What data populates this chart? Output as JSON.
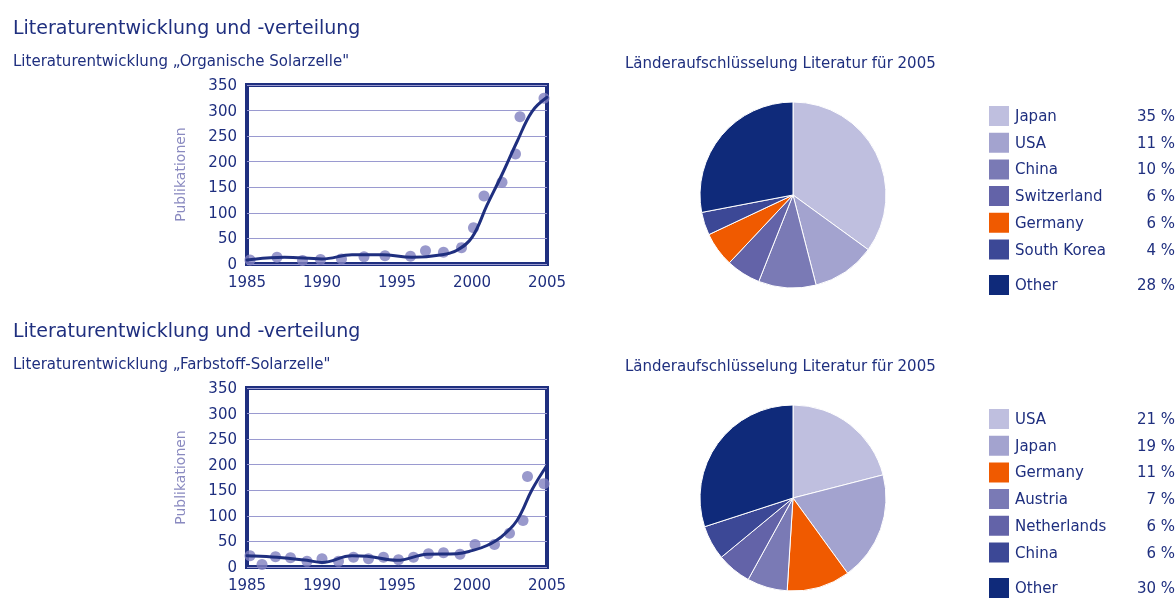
{
  "chart_data": [
    {
      "type": "scatter",
      "title": "Literaturentwicklung und -verteilung",
      "subtitle": "Literaturentwicklung „Organische Solarzelle\"",
      "ylabel": "Publikationen",
      "xlim": [
        1985,
        2005
      ],
      "xticks": [
        1985,
        1990,
        1995,
        2000,
        2005
      ],
      "ylim": [
        0,
        350
      ],
      "yticks": [
        0,
        50,
        100,
        150,
        200,
        250,
        300,
        350
      ],
      "grid": "y",
      "legend": false,
      "series": [
        {
          "type": "scatter",
          "marker": "circle",
          "color": "#8080bf",
          "x": [
            1985.2,
            1987.0,
            1988.7,
            1989.9,
            1991.3,
            1992.8,
            1994.2,
            1995.9,
            1996.9,
            1998.1,
            1999.3,
            2000.1,
            2000.8,
            2002.0,
            2002.9,
            2003.2,
            2004.8
          ],
          "values": [
            8,
            13,
            7,
            9,
            10,
            14,
            16,
            15,
            26,
            23,
            32,
            71,
            133,
            160,
            215,
            288,
            324
          ]
        },
        {
          "type": "line",
          "marker": "none",
          "color": "#1f2f7f",
          "line_style": "solid",
          "x": [
            1985,
            1987.5,
            1990,
            1992,
            1994,
            1996,
            1998,
            1999,
            2000,
            2001,
            2002,
            2003,
            2004,
            2005
          ],
          "values": [
            8,
            13,
            10,
            18,
            18,
            13,
            18,
            27,
            52,
            115,
            175,
            239,
            298,
            326
          ]
        }
      ]
    },
    {
      "type": "pie",
      "title": "Länderaufschlüsselung Literatur für 2005",
      "legend": "right",
      "categories": [
        "Japan",
        "USA",
        "China",
        "Switzerland",
        "Germany",
        "South Korea",
        "Other"
      ],
      "values": [
        35,
        11,
        10,
        6,
        6,
        4,
        28
      ],
      "value_labels": [
        "35 %",
        "11 %",
        "10 %",
        "6 %",
        "6 %",
        "4 %",
        "28 %"
      ],
      "colors": [
        "#bfbfdf",
        "#a3a3cf",
        "#7a7ab5",
        "#6363a8",
        "#f05a00",
        "#3c4896",
        "#0f2a7a"
      ]
    },
    {
      "type": "scatter",
      "title": "Literaturentwicklung und -verteilung",
      "subtitle": "Literaturentwicklung „Farbstoff-Solarzelle\"",
      "ylabel": "Publikationen",
      "xlim": [
        1985,
        2005
      ],
      "xticks": [
        1985,
        1990,
        1995,
        2000,
        2005
      ],
      "ylim": [
        0,
        350
      ],
      "yticks": [
        0,
        50,
        100,
        150,
        200,
        250,
        300,
        350
      ],
      "grid": "y",
      "legend": false,
      "series": [
        {
          "type": "scatter",
          "marker": "circle",
          "color": "#8080bf",
          "x": [
            1985.2,
            1986.0,
            1986.9,
            1987.9,
            1989.0,
            1990.0,
            1991.1,
            1992.1,
            1993.1,
            1994.1,
            1995.1,
            1996.1,
            1997.1,
            1998.1,
            1999.2,
            2000.2,
            2001.5,
            2002.5,
            2003.4,
            2003.7,
            2004.8
          ],
          "values": [
            22,
            5,
            20,
            18,
            11,
            16,
            11,
            19,
            16,
            19,
            14,
            19,
            26,
            28,
            25,
            44,
            44,
            66,
            91,
            177,
            163
          ]
        },
        {
          "type": "line",
          "marker": "none",
          "color": "#1f2f7f",
          "line_style": "solid",
          "x": [
            1985,
            1987,
            1989,
            1990,
            1992,
            1993,
            1995,
            1997,
            1999,
            2000,
            2001,
            2002,
            2003,
            2004,
            2005
          ],
          "values": [
            22,
            19,
            13,
            9,
            22,
            21,
            13,
            25,
            26,
            32,
            42,
            60,
            91,
            151,
            199
          ]
        }
      ]
    },
    {
      "type": "pie",
      "title": "Länderaufschlüsselung Literatur für 2005",
      "legend": "right",
      "categories": [
        "USA",
        "Japan",
        "Germany",
        "Austria",
        "Netherlands",
        "China",
        "Other"
      ],
      "values": [
        21,
        19,
        11,
        7,
        6,
        6,
        30
      ],
      "value_labels": [
        "21 %",
        "19 %",
        "11 %",
        "7 %",
        "6 %",
        "6 %",
        "30 %"
      ],
      "colors": [
        "#bfbfdf",
        "#a3a3cf",
        "#f05a00",
        "#7a7ab5",
        "#6363a8",
        "#3c4896",
        "#0f2a7a"
      ]
    }
  ]
}
